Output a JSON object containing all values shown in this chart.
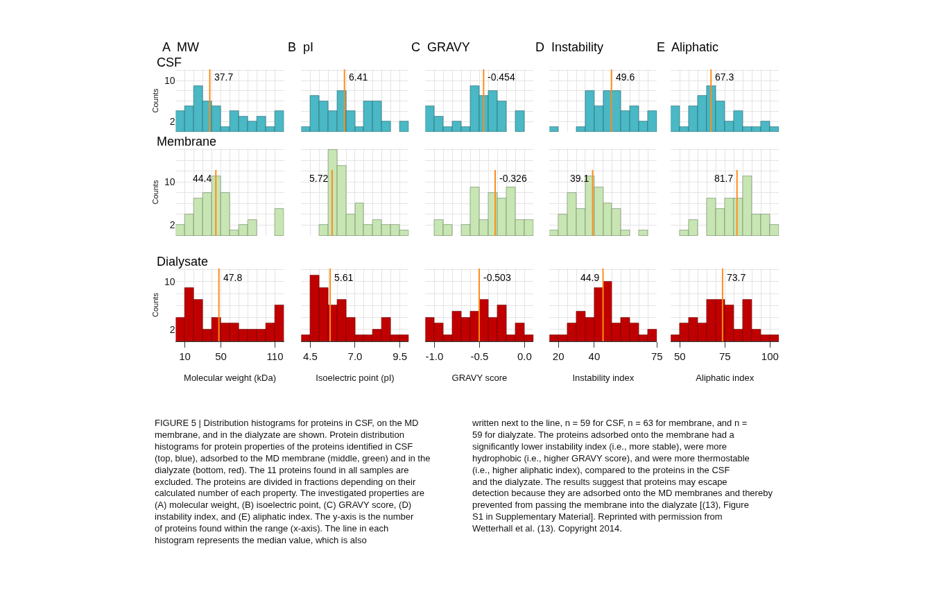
{
  "chart_data": [
    {
      "type": "histogram",
      "title": "A  MW",
      "subtitle": "CSF",
      "ylabel": "Counts",
      "bins": [
        0,
        10,
        20,
        30,
        40,
        50,
        60,
        70,
        80,
        90,
        100,
        110,
        120
      ],
      "values": [
        4,
        5,
        9,
        6,
        5,
        1,
        4,
        3,
        2,
        3,
        1,
        4
      ],
      "color": "#4ab8c5",
      "xlim": [
        0,
        120
      ],
      "ylim": [
        0,
        12.2
      ],
      "yticks": [
        2,
        {
          "value": 4,
          "label": null
        },
        {
          "value": 6,
          "label": null
        },
        {
          "value": 8,
          "label": null
        },
        10,
        {
          "value": 12,
          "label": null
        }
      ],
      "grid": true,
      "tick_labels": "y",
      "ref_lines": [
        {
          "axis": "x",
          "value": 37.7,
          "label": "37.7",
          "color": "#ff8c1a"
        }
      ],
      "annotations": [
        "FIGURE 5 | Distribution histograms for proteins in CSF, on the MD membrane, and in the dialyzate are shown. Protein distribution histograms for protein properties of the proteins identified in CSF (top, blue), adsorbed to the MD membrane (middle, green) and in the dialyzate (bottom, red). The 11 proteins found in all samples are excluded. The proteins are divided in fractions depending on their calculated number of each property. The investigated properties are (A) molecular weight, (B) isoelectric point, (C) GRAVY score, (D) instability index, and (E) aliphatic index. The y-axis is the number of proteins found within the range (x-axis). The line in each histogram represents the median value, which is also",
        "written next to the line, n = 59 for CSF, n = 63 for membrane, and n = 59 for dialyzate. The proteins adsorbed onto the membrane had a significantly lower instability index (i.e., more stable), were more hydrophobic (i.e., higher GRAVY score), and were more thermostable (i.e., higher aliphatic index), compared to the proteins in the CSF and the dialyzate. The results suggest that proteins may escape detection because they are adsorbed onto the MD membranes and thereby prevented from passing the membrane into the dialyzate [(13), Figure S1 in Supplementary Material]. Reprinted with permission from Wetterhall et al. (13). Copyright 2014."
      ]
    },
    {
      "type": "histogram",
      "title": "B  pI",
      "bins": [
        4.0,
        4.5,
        5.0,
        5.5,
        6.0,
        6.5,
        7.0,
        7.5,
        8.0,
        8.5,
        9.0,
        9.5,
        10.0
      ],
      "values": [
        1,
        7,
        6,
        4,
        8,
        4,
        1,
        6,
        6,
        2,
        0,
        2
      ],
      "color": "#4ab8c5",
      "xlim": [
        4,
        10
      ],
      "ylim": [
        0,
        12.2
      ],
      "yticks": [
        2,
        {
          "value": 4,
          "label": null
        },
        {
          "value": 6,
          "label": null
        },
        {
          "value": 8,
          "label": null
        },
        10,
        {
          "value": 12,
          "label": null
        }
      ],
      "grid": true,
      "tick_labels": false,
      "ref_lines": [
        {
          "axis": "x",
          "value": 6.41,
          "label": "6.41",
          "color": "#ff8c1a"
        }
      ]
    },
    {
      "type": "histogram",
      "title": "C  GRAVY",
      "bins": [
        -1.1,
        -1.0,
        -0.9,
        -0.8,
        -0.7,
        -0.6,
        -0.5,
        -0.4,
        -0.3,
        -0.2,
        -0.1,
        0.0,
        0.1
      ],
      "values": [
        5,
        3,
        1,
        2,
        1,
        9,
        7,
        8,
        6,
        0,
        4,
        0
      ],
      "color": "#4ab8c5",
      "xlim": [
        -1.1,
        0.1
      ],
      "ylim": [
        0,
        12.2
      ],
      "yticks": [
        2,
        {
          "value": 4,
          "label": null
        },
        {
          "value": 6,
          "label": null
        },
        {
          "value": 8,
          "label": null
        },
        10,
        {
          "value": 12,
          "label": null
        }
      ],
      "grid": true,
      "tick_labels": false,
      "ref_lines": [
        {
          "axis": "x",
          "value": -0.454,
          "label": "-0.454",
          "color": "#ff8c1a"
        }
      ]
    },
    {
      "type": "histogram",
      "title": "D  Instability",
      "bins": [
        15,
        20,
        25,
        30,
        35,
        40,
        45,
        50,
        55,
        60,
        65,
        70,
        75
      ],
      "values": [
        1,
        0,
        0,
        1,
        8,
        5,
        8,
        8,
        4,
        5,
        2,
        4
      ],
      "color": "#4ab8c5",
      "xlim": [
        15,
        75
      ],
      "ylim": [
        0,
        12.2
      ],
      "yticks": [
        2,
        {
          "value": 4,
          "label": null
        },
        {
          "value": 6,
          "label": null
        },
        {
          "value": 8,
          "label": null
        },
        10,
        {
          "value": 12,
          "label": null
        }
      ],
      "grid": true,
      "tick_labels": false,
      "ref_lines": [
        {
          "axis": "x",
          "value": 49.6,
          "label": "49.6",
          "color": "#ff8c1a"
        }
      ]
    },
    {
      "type": "histogram",
      "title": "E  Aliphatic",
      "bins": [
        45,
        50,
        55,
        60,
        65,
        70,
        75,
        80,
        85,
        90,
        95,
        100,
        105
      ],
      "values": [
        5,
        1,
        5,
        7,
        9,
        6,
        2,
        4,
        1,
        1,
        2,
        1
      ],
      "color": "#4ab8c5",
      "xlim": [
        45,
        105
      ],
      "ylim": [
        0,
        12.2
      ],
      "yticks": [
        2,
        {
          "value": 4,
          "label": null
        },
        {
          "value": 6,
          "label": null
        },
        {
          "value": 8,
          "label": null
        },
        10,
        {
          "value": 12,
          "label": null
        }
      ],
      "grid": true,
      "tick_labels": false,
      "ref_lines": [
        {
          "axis": "x",
          "value": 67.3,
          "label": "67.3",
          "color": "#ff8c1a"
        }
      ]
    },
    {
      "type": "histogram",
      "subtitle": "Membrane",
      "ylabel": "Counts",
      "bins": [
        0,
        10,
        20,
        30,
        40,
        50,
        60,
        70,
        80,
        90,
        100,
        110,
        120
      ],
      "values": [
        2,
        4,
        7,
        8,
        11,
        8,
        1,
        2,
        3,
        0,
        0,
        5
      ],
      "color": "#c7e6b3",
      "xlim": [
        0,
        120
      ],
      "ylim": [
        0,
        16.2
      ],
      "yticks": [
        2,
        {
          "value": 4,
          "label": null
        },
        {
          "value": 6,
          "label": null
        },
        {
          "value": 8,
          "label": null
        },
        10,
        {
          "value": 12,
          "label": null
        },
        {
          "value": 14,
          "label": null
        },
        {
          "value": 16,
          "label": null
        }
      ],
      "grid": true,
      "tick_labels": "y",
      "ref_lines": [
        {
          "axis": "x",
          "value": 44.4,
          "label": "44.4",
          "color": "#ff8c1a"
        }
      ]
    },
    {
      "type": "histogram",
      "bins": [
        4.0,
        4.5,
        5.0,
        5.5,
        6.0,
        6.5,
        7.0,
        7.5,
        8.0,
        8.5,
        9.0,
        9.5,
        10.0
      ],
      "values": [
        0,
        0,
        2,
        16,
        13,
        4,
        6,
        2,
        3,
        2,
        2,
        1
      ],
      "color": "#c7e6b3",
      "xlim": [
        4,
        10
      ],
      "ylim": [
        0,
        16.2
      ],
      "yticks": [
        2,
        {
          "value": 4,
          "label": null
        },
        {
          "value": 6,
          "label": null
        },
        {
          "value": 8,
          "label": null
        },
        10,
        {
          "value": 12,
          "label": null
        },
        {
          "value": 14,
          "label": null
        },
        {
          "value": 16,
          "label": null
        }
      ],
      "grid": true,
      "tick_labels": false,
      "ref_lines": [
        {
          "axis": "x",
          "value": 5.72,
          "label": "5.72",
          "color": "#ff8c1a"
        }
      ]
    },
    {
      "type": "histogram",
      "bins": [
        -1.1,
        -1.0,
        -0.9,
        -0.8,
        -0.7,
        -0.6,
        -0.5,
        -0.4,
        -0.3,
        -0.2,
        -0.1,
        0.0,
        0.1
      ],
      "values": [
        0,
        3,
        2,
        0,
        2,
        9,
        3,
        8,
        7,
        9,
        3,
        3
      ],
      "color": "#c7e6b3",
      "xlim": [
        -1.1,
        0.1
      ],
      "ylim": [
        0,
        16.2
      ],
      "yticks": [
        2,
        {
          "value": 4,
          "label": null
        },
        {
          "value": 6,
          "label": null
        },
        {
          "value": 8,
          "label": null
        },
        10,
        {
          "value": 12,
          "label": null
        },
        {
          "value": 14,
          "label": null
        },
        {
          "value": 16,
          "label": null
        }
      ],
      "grid": true,
      "tick_labels": false,
      "ref_lines": [
        {
          "axis": "x",
          "value": -0.326,
          "label": "-0.326",
          "color": "#ff8c1a"
        }
      ]
    },
    {
      "type": "histogram",
      "bins": [
        15,
        20,
        25,
        30,
        35,
        40,
        45,
        50,
        55,
        60,
        65,
        70,
        75
      ],
      "values": [
        1,
        4,
        8,
        5,
        11,
        9,
        6,
        5,
        1,
        0,
        1,
        0
      ],
      "color": "#c7e6b3",
      "xlim": [
        15,
        75
      ],
      "ylim": [
        0,
        16.2
      ],
      "yticks": [
        2,
        {
          "value": 4,
          "label": null
        },
        {
          "value": 6,
          "label": null
        },
        {
          "value": 8,
          "label": null
        },
        10,
        {
          "value": 12,
          "label": null
        },
        {
          "value": 14,
          "label": null
        },
        {
          "value": 16,
          "label": null
        }
      ],
      "grid": true,
      "tick_labels": false,
      "ref_lines": [
        {
          "axis": "x",
          "value": 39.1,
          "label": "39.1",
          "color": "#ff8c1a"
        }
      ]
    },
    {
      "type": "histogram",
      "bins": [
        45,
        50,
        55,
        60,
        65,
        70,
        75,
        80,
        85,
        90,
        95,
        100,
        105
      ],
      "values": [
        0,
        1,
        3,
        0,
        7,
        5,
        7,
        7,
        11,
        4,
        4,
        2
      ],
      "color": "#c7e6b3",
      "xlim": [
        45,
        105
      ],
      "ylim": [
        0,
        16.2
      ],
      "yticks": [
        2,
        {
          "value": 4,
          "label": null
        },
        {
          "value": 6,
          "label": null
        },
        {
          "value": 8,
          "label": null
        },
        10,
        {
          "value": 12,
          "label": null
        },
        {
          "value": 14,
          "label": null
        },
        {
          "value": 16,
          "label": null
        }
      ],
      "grid": true,
      "tick_labels": false,
      "ref_lines": [
        {
          "axis": "x",
          "value": 81.7,
          "label": "81.7",
          "color": "#ff8c1a"
        }
      ]
    },
    {
      "type": "histogram",
      "subtitle": "Dialysate",
      "ylabel": "Counts",
      "xlabel": "Molecular weight (kDa)",
      "bins": [
        0,
        10,
        20,
        30,
        40,
        50,
        60,
        70,
        80,
        90,
        100,
        110,
        120
      ],
      "values": [
        4,
        9,
        7,
        2,
        4,
        3,
        3,
        2,
        2,
        2,
        3,
        6
      ],
      "color": "#c00000",
      "xlim": [
        0,
        120
      ],
      "xticks": [
        10,
        50,
        110
      ],
      "ylim": [
        0,
        12.2
      ],
      "yticks": [
        2,
        {
          "value": 4,
          "label": null
        },
        {
          "value": 6,
          "label": null
        },
        {
          "value": 8,
          "label": null
        },
        10,
        {
          "value": 12,
          "label": null
        }
      ],
      "grid": true,
      "ref_lines": [
        {
          "axis": "x",
          "value": 47.8,
          "label": "47.8",
          "color": "#ff8c1a"
        }
      ]
    },
    {
      "type": "histogram",
      "xlabel": "Isoelectric point (pI)",
      "bins": [
        4.0,
        4.5,
        5.0,
        5.5,
        6.0,
        6.5,
        7.0,
        7.5,
        8.0,
        8.5,
        9.0,
        9.5,
        10.0
      ],
      "values": [
        1,
        11,
        9,
        6,
        7,
        4,
        1,
        1,
        2,
        4,
        1,
        1
      ],
      "color": "#c00000",
      "xlim": [
        4,
        10
      ],
      "xticks": [
        4.5,
        {
          "value": 7,
          "label": "7.0"
        },
        9.5
      ],
      "ylim": [
        0,
        12.2
      ],
      "yticks": [
        2,
        {
          "value": 4,
          "label": null
        },
        {
          "value": 6,
          "label": null
        },
        {
          "value": 8,
          "label": null
        },
        10,
        {
          "value": 12,
          "label": null
        }
      ],
      "grid": true,
      "tick_labels": "x",
      "ref_lines": [
        {
          "axis": "x",
          "value": 5.61,
          "label": "5.61",
          "color": "#ff8c1a"
        }
      ]
    },
    {
      "type": "histogram",
      "xlabel": "GRAVY score",
      "bins": [
        -1.1,
        -1.0,
        -0.9,
        -0.8,
        -0.7,
        -0.6,
        -0.5,
        -0.4,
        -0.3,
        -0.2,
        -0.1,
        0.0,
        0.1
      ],
      "values": [
        4,
        3,
        1,
        5,
        4,
        5,
        7,
        4,
        6,
        1,
        3,
        1
      ],
      "color": "#c00000",
      "xlim": [
        -1.1,
        0.1
      ],
      "xticks": [
        {
          "value": -1,
          "label": "-1.0"
        },
        -0.5,
        {
          "value": 0,
          "label": "0.0"
        }
      ],
      "ylim": [
        0,
        12.2
      ],
      "yticks": [
        2,
        {
          "value": 4,
          "label": null
        },
        {
          "value": 6,
          "label": null
        },
        {
          "value": 8,
          "label": null
        },
        10,
        {
          "value": 12,
          "label": null
        }
      ],
      "grid": true,
      "tick_labels": "x",
      "ref_lines": [
        {
          "axis": "x",
          "value": -0.503,
          "label": "-0.503",
          "color": "#ff8c1a"
        }
      ]
    },
    {
      "type": "histogram",
      "xlabel": "Instability index",
      "bins": [
        15,
        20,
        25,
        30,
        35,
        40,
        45,
        50,
        55,
        60,
        65,
        70,
        75
      ],
      "values": [
        1,
        1,
        3,
        5,
        4,
        9,
        10,
        3,
        4,
        3,
        1,
        2
      ],
      "color": "#c00000",
      "xlim": [
        15,
        75
      ],
      "xticks": [
        20,
        40,
        75
      ],
      "ylim": [
        0,
        12.2
      ],
      "yticks": [
        2,
        {
          "value": 4,
          "label": null
        },
        {
          "value": 6,
          "label": null
        },
        {
          "value": 8,
          "label": null
        },
        10,
        {
          "value": 12,
          "label": null
        }
      ],
      "grid": true,
      "tick_labels": "x",
      "ref_lines": [
        {
          "axis": "x",
          "value": 44.9,
          "label": "44.9",
          "color": "#ff8c1a"
        }
      ]
    },
    {
      "type": "histogram",
      "xlabel": "Aliphatic index",
      "bins": [
        45,
        50,
        55,
        60,
        65,
        70,
        75,
        80,
        85,
        90,
        95,
        100,
        105
      ],
      "values": [
        1,
        3,
        4,
        3,
        7,
        7,
        6,
        2,
        7,
        2,
        1,
        1
      ],
      "color": "#c00000",
      "xlim": [
        45,
        105
      ],
      "xticks": [
        50,
        75,
        100
      ],
      "ylim": [
        0,
        12.2
      ],
      "yticks": [
        2,
        {
          "value": 4,
          "label": null
        },
        {
          "value": 6,
          "label": null
        },
        {
          "value": 8,
          "label": null
        },
        10,
        {
          "value": 12,
          "label": null
        }
      ],
      "grid": true,
      "tick_labels": "x",
      "ref_lines": [
        {
          "axis": "x",
          "value": 73.7,
          "label": "73.7",
          "color": "#ff8c1a"
        }
      ]
    }
  ]
}
